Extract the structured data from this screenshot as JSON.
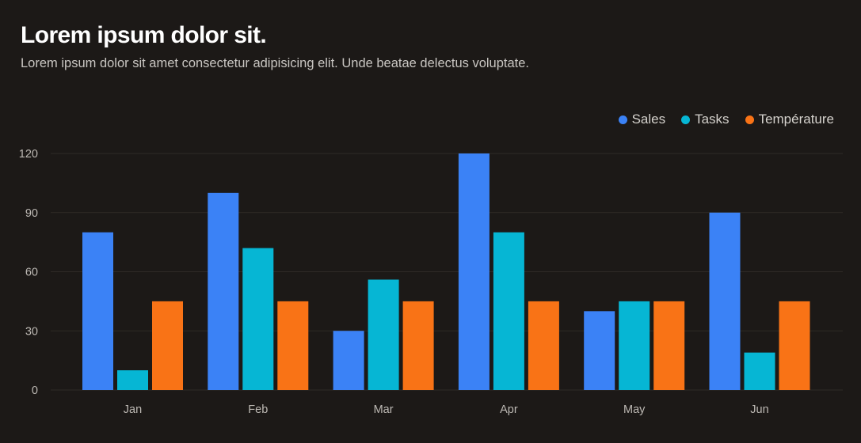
{
  "header": {
    "title": "Lorem ipsum dolor sit.",
    "subtitle": "Lorem ipsum dolor sit amet consectetur adipisicing elit. Unde beatae delectus voluptate."
  },
  "colors": {
    "background": "#1c1917",
    "grid": "#2e2a27",
    "sales": "#3b82f6",
    "tasks": "#06b6d4",
    "temperature": "#f97316"
  },
  "chart_data": {
    "type": "bar",
    "categories": [
      "Jan",
      "Feb",
      "Mar",
      "Apr",
      "May",
      "Jun"
    ],
    "series": [
      {
        "name": "Sales",
        "color": "#3b82f6",
        "values": [
          80,
          100,
          30,
          120,
          40,
          90
        ]
      },
      {
        "name": "Tasks",
        "color": "#06b6d4",
        "values": [
          10,
          72,
          56,
          80,
          45,
          19
        ]
      },
      {
        "name": "Température",
        "color": "#f97316",
        "values": [
          45,
          45,
          45,
          45,
          45,
          45
        ]
      }
    ],
    "yticks": [
      0,
      30,
      60,
      90,
      120
    ],
    "ylim": [
      0,
      120
    ],
    "grid": true,
    "legend_position": "top-right"
  }
}
